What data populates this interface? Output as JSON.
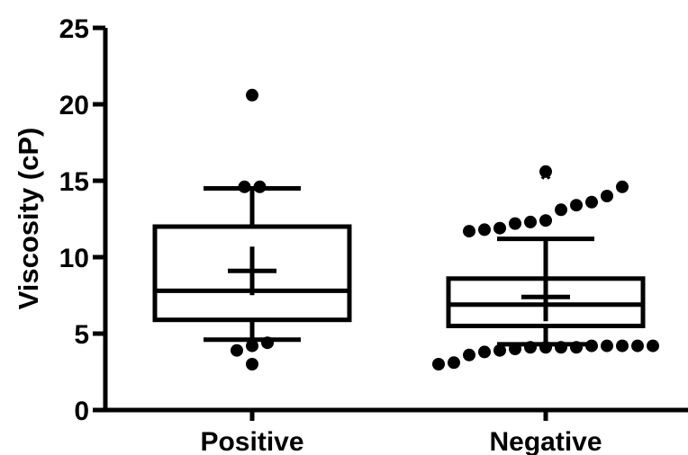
{
  "chart_data": {
    "type": "box",
    "title": "",
    "xlabel": "",
    "ylabel": "Viscosity (cP)",
    "ylim": [
      0,
      25
    ],
    "yticks": [
      0,
      5,
      10,
      15,
      20,
      25
    ],
    "ytick_labels": [
      "0",
      "5",
      "10",
      "15",
      "20",
      "25"
    ],
    "categories": [
      "Positive",
      "Negative"
    ],
    "grid": false,
    "legend": "none",
    "colors": {
      "stroke": "#000000",
      "background": "#ffffff"
    },
    "series": [
      {
        "category": "Positive",
        "box": {
          "whisker_low": 4.6,
          "q1": 5.9,
          "median": 7.8,
          "q3": 12.0,
          "whisker_high": 14.5,
          "mean": 9.1
        },
        "outliers": [
          3.0,
          3.9,
          4.2,
          4.4,
          14.6,
          14.6,
          20.6
        ],
        "annotation": ""
      },
      {
        "category": "Negative",
        "box": {
          "whisker_low": 4.3,
          "q1": 5.5,
          "median": 6.9,
          "q3": 8.6,
          "whisker_high": 11.2,
          "mean": 7.4
        },
        "outliers": [
          3.0,
          3.1,
          3.6,
          3.8,
          3.9,
          4.0,
          4.1,
          4.1,
          4.1,
          4.1,
          4.2,
          4.2,
          4.2,
          4.2,
          4.2,
          11.7,
          11.8,
          11.9,
          12.2,
          12.3,
          12.4,
          13.1,
          13.4,
          13.6,
          14.0,
          14.6,
          15.6
        ],
        "annotation": "*"
      }
    ]
  }
}
